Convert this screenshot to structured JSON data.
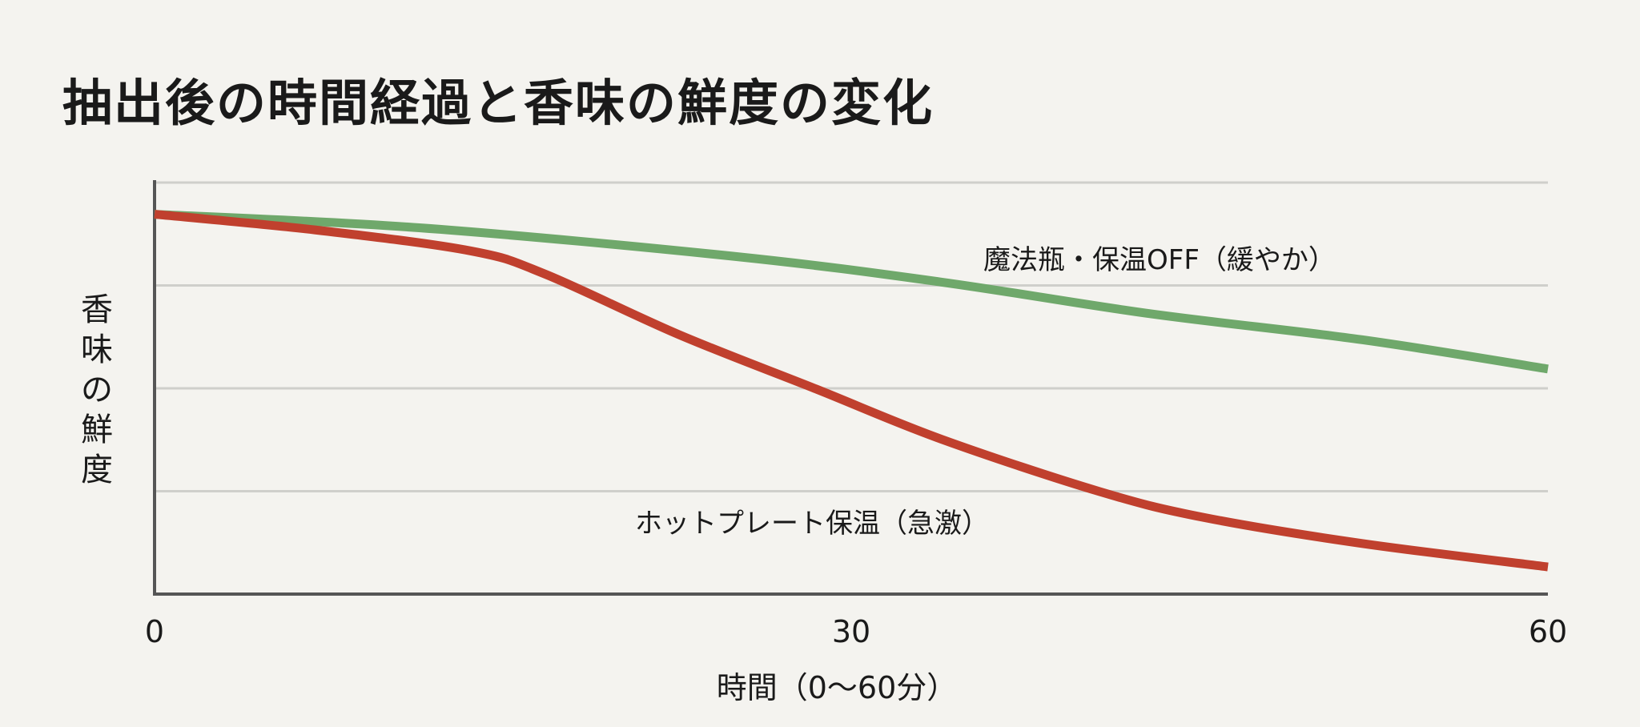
{
  "chart_data": {
    "type": "line",
    "title": "抽出後の時間経過と香味の鮮度の変化",
    "xlabel": "時間（0〜60分）",
    "ylabel": "香味の鮮度",
    "xlim": [
      0,
      60
    ],
    "ylim": [
      0,
      100
    ],
    "x_ticks": [
      "0",
      "30",
      "60"
    ],
    "y_gridlines": [
      25,
      50,
      75,
      100
    ],
    "grid": "horizontal",
    "legend": "inline labels",
    "series": [
      {
        "name": "魔法瓶・保温OFF（緩やか）",
        "color": "#6fa86b",
        "points": [
          [
            0,
            92.3
          ],
          [
            11.4,
            89
          ],
          [
            24.9,
            82.1
          ],
          [
            33.9,
            75.8
          ],
          [
            42.9,
            68.1
          ],
          [
            52,
            61.8
          ],
          [
            60,
            54.7
          ]
        ]
      },
      {
        "name": "ホットプレート保温（急激）",
        "color": "#c0402e",
        "points": [
          [
            0,
            92.3
          ],
          [
            6.9,
            88.5
          ],
          [
            13.6,
            83.4
          ],
          [
            16.8,
            77.8
          ],
          [
            22.6,
            63
          ],
          [
            28.5,
            49.8
          ],
          [
            33.9,
            37.6
          ],
          [
            40.7,
            24.9
          ],
          [
            45.2,
            18.6
          ],
          [
            52,
            12.3
          ],
          [
            60,
            6.6
          ]
        ]
      }
    ]
  }
}
